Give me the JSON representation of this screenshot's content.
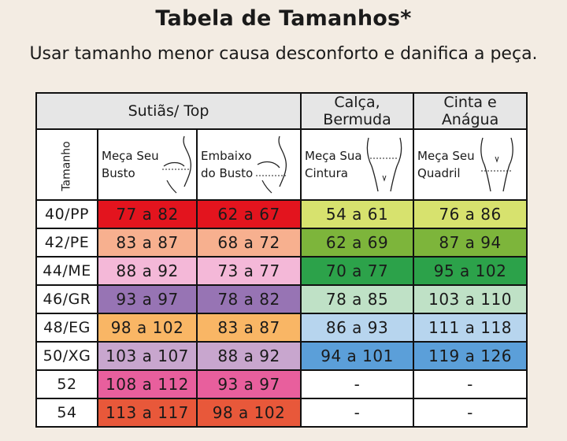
{
  "title": "Tabela de Tamanhos*",
  "subtitle": "Usar tamanho menor causa desconforto e danifica a peça.",
  "table": {
    "groups": [
      "Sutiãs/ Top",
      "Calça, Bermuda",
      "Cinta e Anágua"
    ],
    "size_header": "Tamanho",
    "measures": [
      {
        "line1": "Meça Seu",
        "line2": "Busto",
        "figure": "bust-figure-icon"
      },
      {
        "line1": "Embaixo",
        "line2": "do Busto",
        "figure": "underbust-figure-icon"
      },
      {
        "line1": "Meça Sua",
        "line2": "Cintura",
        "figure": "waist-figure-icon"
      },
      {
        "line1": "Meça Seu",
        "line2": "Quadril",
        "figure": "hip-figure-icon"
      }
    ],
    "rows": [
      {
        "size": "40/PP",
        "cells": [
          "77 a 82",
          "62 a 67",
          "54 a 61",
          "76 a 86"
        ]
      },
      {
        "size": "42/PE",
        "cells": [
          "83 a 87",
          "68 a 72",
          "62 a 69",
          "87 a 94"
        ]
      },
      {
        "size": "44/ME",
        "cells": [
          "88 a 92",
          "73 a 77",
          "70 a 77",
          "95 a 102"
        ]
      },
      {
        "size": "46/GR",
        "cells": [
          "93 a 97",
          "78 a 82",
          "78 a 85",
          "103 a 110"
        ]
      },
      {
        "size": "48/EG",
        "cells": [
          "98 a 102",
          "83 a 87",
          "86 a 93",
          "111 a 118"
        ]
      },
      {
        "size": "50/XG",
        "cells": [
          "103 a 107",
          "88 a 92",
          "94 a 101",
          "119 a 126"
        ]
      },
      {
        "size": "52",
        "cells": [
          "108 a 112",
          "93 a 97",
          "-",
          "-"
        ]
      },
      {
        "size": "54",
        "cells": [
          "113 a 117",
          "98 a 102",
          "-",
          "-"
        ]
      }
    ],
    "colors": {
      "bra": [
        "#e3141e",
        "#f7b08f",
        "#f4b8d8",
        "#9774b4",
        "#f9b665",
        "#c8a6ce",
        "#e85f9d",
        "#e8583a"
      ],
      "waist": [
        "#d7e26e",
        "#7db53b",
        "#2ca24a",
        "#bfe1c6",
        "#b7d5ee",
        "#5b9fd9",
        "#ffffff",
        "#ffffff"
      ],
      "hip": [
        "#d7e26e",
        "#7db53b",
        "#2ca24a",
        "#bfe1c6",
        "#b7d5ee",
        "#5b9fd9",
        "#ffffff",
        "#ffffff"
      ]
    }
  }
}
